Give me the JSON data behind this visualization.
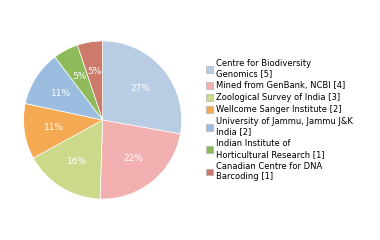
{
  "legend_labels": [
    "Centre for Biodiversity\nGenomics [5]",
    "Mined from GenBank, NCBI [4]",
    "Zoological Survey of India [3]",
    "Wellcome Sanger Institute [2]",
    "University of Jammu, Jammu J&K\nIndia [2]",
    "Indian Institute of\nHorticultural Research [1]",
    "Canadian Centre for DNA\nBarcoding [1]"
  ],
  "values": [
    27,
    22,
    16,
    11,
    11,
    5,
    5
  ],
  "colors": [
    "#b8cce4",
    "#f2b0b0",
    "#cdd98a",
    "#f4a952",
    "#9abde0",
    "#8eba5a",
    "#cc7b6a"
  ],
  "startangle": 90,
  "text_color": "#ffffff",
  "pct_fontsize": 6.5,
  "legend_fontsize": 6.0
}
